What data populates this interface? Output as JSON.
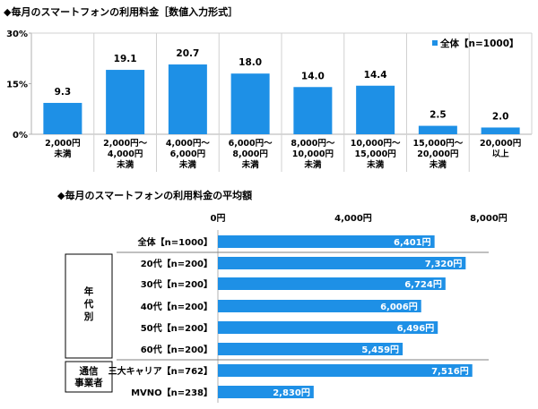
{
  "chart_data": [
    {
      "type": "bar",
      "title": "◆毎月のスマートフォンの利用料金［数値入力形式］",
      "unit": "%",
      "ylim": [
        0,
        30
      ],
      "yticks": [
        "0%",
        "15%",
        "30%"
      ],
      "ytick_values": [
        0,
        15,
        30
      ],
      "categories": [
        [
          "2,000円",
          "未満"
        ],
        [
          "2,000円～",
          "4,000円",
          "未満"
        ],
        [
          "4,000円～",
          "6,000円",
          "未満"
        ],
        [
          "6,000円～",
          "8,000円",
          "未満"
        ],
        [
          "8,000円～",
          "10,000円",
          "未満"
        ],
        [
          "10,000円～",
          "15,000円",
          "未満"
        ],
        [
          "15,000円～",
          "20,000円",
          "未満"
        ],
        [
          "20,000円",
          "以上"
        ]
      ],
      "series": [
        {
          "name": "全体【n=1000】",
          "values": [
            9.3,
            19.1,
            20.7,
            18.0,
            14.0,
            14.4,
            2.5,
            2.0
          ]
        }
      ],
      "value_labels": [
        "9.3",
        "19.1",
        "20.7",
        "18.0",
        "14.0",
        "14.4",
        "2.5",
        "2.0"
      ],
      "legend_position": "top-right",
      "grid": "vertical separators",
      "color": "#1e90e6"
    },
    {
      "type": "bar",
      "orientation": "horizontal",
      "title": "◆毎月のスマートフォンの利用料金の平均額",
      "xlim": [
        0,
        8000
      ],
      "xticks": [
        "0円",
        "4,000円",
        "8,000円"
      ],
      "xtick_values": [
        0,
        4000,
        8000
      ],
      "categories": [
        "全体【n=1000】",
        "20代【n=200】",
        "30代【n=200】",
        "40代【n=200】",
        "50代【n=200】",
        "60代【n=200】",
        "三大キャリア【n=762】",
        "MVNO【n=238】"
      ],
      "values": [
        6401,
        7320,
        6724,
        6006,
        6496,
        5459,
        7516,
        2830
      ],
      "value_labels": [
        "6,401円",
        "7,320円",
        "6,724円",
        "6,006円",
        "6,496円",
        "5,459円",
        "7,516円",
        "2,830円"
      ],
      "groups": [
        {
          "label": [
            "年",
            "代",
            "別"
          ],
          "members": [
            1,
            2,
            3,
            4,
            5
          ]
        },
        {
          "label": [
            "通信",
            "事業者"
          ],
          "members": [
            6,
            7
          ]
        }
      ],
      "color": "#1e90e6"
    }
  ]
}
